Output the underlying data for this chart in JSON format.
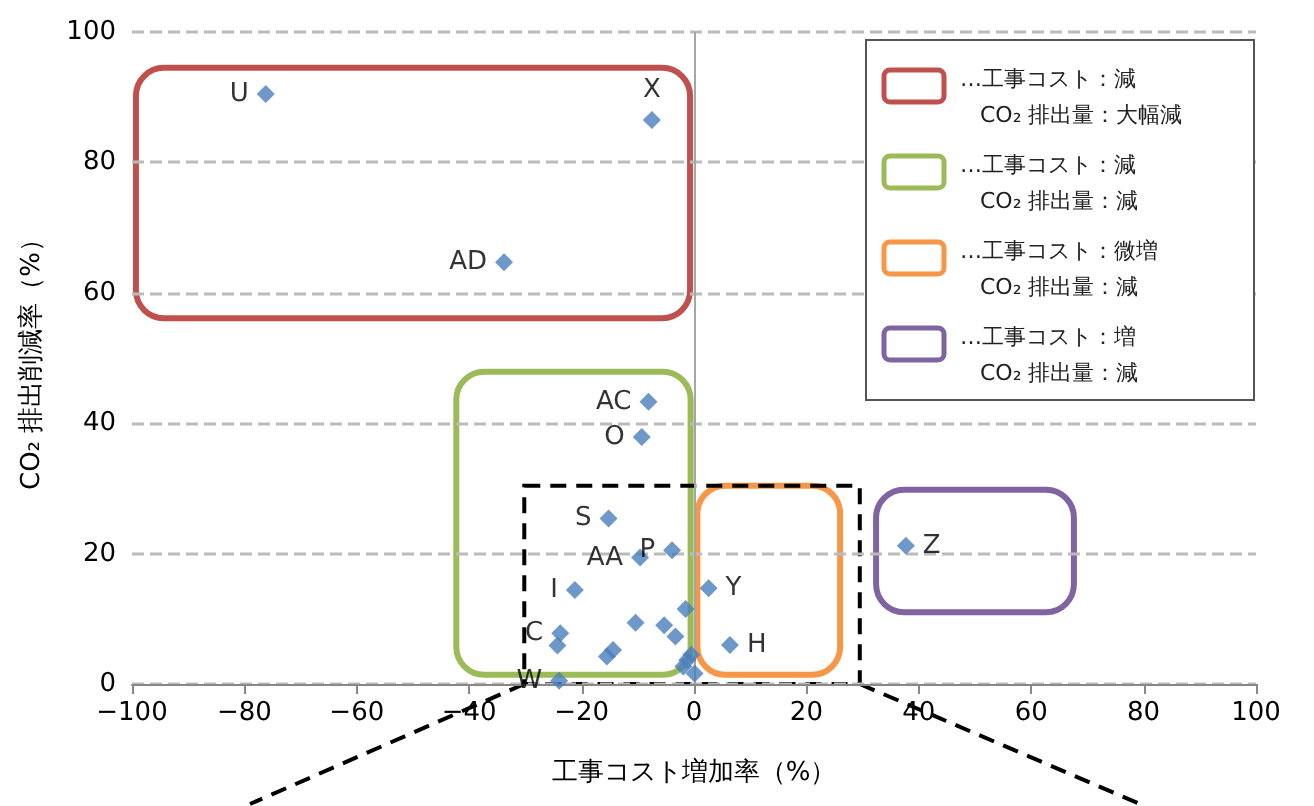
{
  "chart_data": {
    "type": "scatter",
    "xlabel": "工事コスト増加率（%）",
    "ylabel": "CO₂ 排出削減率（%）",
    "x": [
      -76.2,
      -7.5,
      -33.8,
      37.7,
      -8.1,
      -9.3,
      -15.2,
      -3.9,
      -9.6,
      2.6,
      -21.2,
      -10.4,
      -5.3,
      -1.5,
      -3.3,
      6.4,
      -23.8,
      -24.3,
      -14.4,
      -15.5,
      -0.5,
      -1.9,
      0.1,
      -1.2,
      -24
    ],
    "values": [
      90.5,
      86.5,
      64.7,
      21.2,
      43.3,
      37.9,
      25.4,
      20.5,
      19.4,
      14.7,
      14.4,
      9.4,
      9.0,
      11.5,
      7.3,
      6.0,
      7.8,
      5.9,
      5.2,
      4.2,
      4.5,
      2.7,
      1.6,
      3.7,
      0.5
    ],
    "value_labels": [
      "U",
      "X",
      "AD",
      "Z",
      "AC",
      "O",
      "S",
      "P",
      "AA",
      "Y",
      "I",
      null,
      null,
      null,
      null,
      "H",
      "C",
      null,
      null,
      null,
      null,
      null,
      null,
      null,
      "W"
    ],
    "color": "#4a7ebb",
    "marker": "diamond",
    "xlim": [
      -100,
      100
    ],
    "xticks": [
      -100,
      -80,
      -60,
      -40,
      -20,
      0,
      20,
      40,
      60,
      80,
      100
    ],
    "ylim": [
      0,
      100
    ],
    "yticks": [
      0,
      20,
      40,
      60,
      80,
      100
    ],
    "grid": "y",
    "ref_lines": [
      {
        "axis": "x",
        "value": 0,
        "color": "#a6a6a6"
      }
    ],
    "annotations": [
      "…工事コスト：減\nCO₂ 排出量：大幅減",
      "…工事コスト：減\nCO₂ 排出量：減",
      "…工事コスト：微増\nCO₂ 排出量：減",
      "…工事コスト：増\nCO₂ 排出量：減"
    ]
  }
}
